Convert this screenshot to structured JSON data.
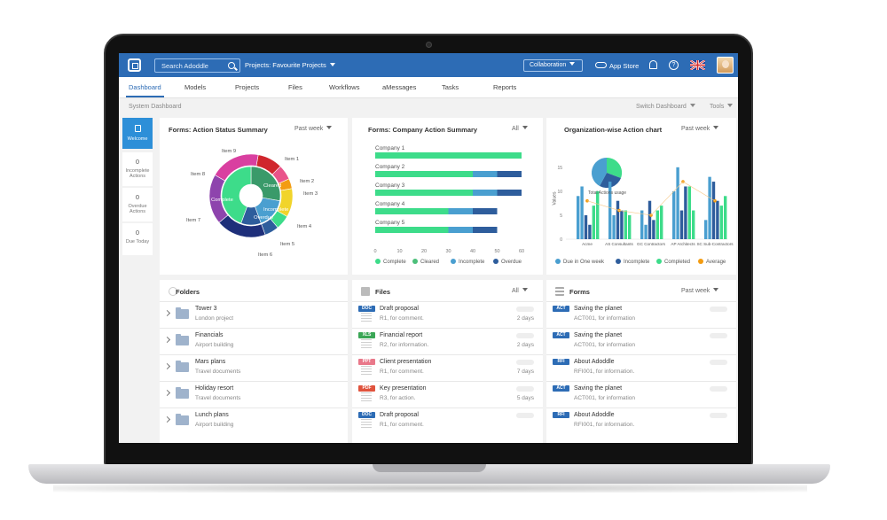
{
  "header": {
    "search_placeholder": "Search Adoddle",
    "projects_label": "Projects: Favourite Projects",
    "collaboration_label": "Collaboration",
    "app_store_label": "App Store",
    "help_glyph": "?"
  },
  "nav": {
    "tabs": [
      "Dashboard",
      "Models",
      "Projects",
      "Files",
      "Workflows",
      "aMessages",
      "Tasks",
      "Reports"
    ],
    "active": "Dashboard"
  },
  "dashbar": {
    "title": "System Dashboard",
    "switch_label": "Switch Dashboard",
    "tools_label": "Tools"
  },
  "side": {
    "welcome_label": "Welcome",
    "incomplete": {
      "count": "0",
      "label": "Incomplete Actions"
    },
    "overdue": {
      "count": "0",
      "label": "Overdue Actions"
    },
    "due_today": {
      "count": "0",
      "label": "Due Today"
    }
  },
  "colors": {
    "brand_blue": "#2d6cb5",
    "complete": "#3ddc8a",
    "cleared": "#4cbf7a",
    "incomplete": "#4a9fd0",
    "overdue": "#2e5d9c",
    "average": "#f39c12"
  },
  "chart_data": [
    {
      "type": "pie",
      "title": "Forms: Action Status Summary",
      "filter": "Past week",
      "inner_labels": [
        "Cleared",
        "Complete",
        "Incomplete",
        "Overdue"
      ],
      "items": [
        "Item 1",
        "Item 2",
        "Item 3",
        "Item 4",
        "Item 5",
        "Item 6",
        "Item 7",
        "Item 8",
        "Item 9"
      ]
    },
    {
      "type": "bar",
      "title": "Forms: Company Action Summary",
      "filter": "All",
      "categories": [
        "Company 1",
        "Company 2",
        "Company 3",
        "Company 4",
        "Company 5"
      ],
      "series": [
        {
          "name": "Complete",
          "values": [
            60,
            40,
            40,
            30,
            30
          ]
        },
        {
          "name": "Cleared",
          "values": [
            0,
            0,
            0,
            0,
            0
          ]
        },
        {
          "name": "Incomplete",
          "values": [
            0,
            10,
            10,
            10,
            10
          ]
        },
        {
          "name": "Overdue",
          "values": [
            0,
            10,
            10,
            10,
            10
          ]
        }
      ],
      "xticks": [
        "0",
        "10",
        "20",
        "30",
        "40",
        "50",
        "60"
      ],
      "xlim": [
        0,
        60
      ]
    },
    {
      "type": "bar",
      "title": "Organization-wise Action chart",
      "filter": "Past week",
      "ylabel": "Values",
      "yticks": [
        "0",
        "5",
        "10",
        "15"
      ],
      "ylim": [
        0,
        17
      ],
      "categories": [
        "Acme",
        "AS Consultants",
        "GC Contractors",
        "AP Architects",
        "SC Sub-Contractors"
      ],
      "series": [
        {
          "name": "Due in One week",
          "values": [
            [
              9,
              11
            ],
            [
              12,
              5
            ],
            [
              6,
              3
            ],
            [
              10,
              15
            ],
            [
              4,
              13
            ]
          ]
        },
        {
          "name": "Incomplete",
          "values": [
            [
              5,
              3
            ],
            [
              8,
              6
            ],
            [
              8,
              4
            ],
            [
              6,
              11
            ],
            [
              12,
              8
            ]
          ]
        },
        {
          "name": "Completed",
          "values": [
            [
              7,
              10
            ],
            [
              6,
              5
            ],
            [
              6,
              7
            ],
            [
              11,
              6
            ],
            [
              7,
              9
            ]
          ]
        },
        {
          "name": "Average",
          "values": [
            8,
            6,
            5,
            12,
            8
          ]
        }
      ],
      "inset": {
        "caption": "Total Actions usage"
      }
    }
  ],
  "folders": {
    "title": "Folders",
    "items": [
      {
        "name": "Tower 3",
        "desc": "London project"
      },
      {
        "name": "Financials",
        "desc": "Airport building"
      },
      {
        "name": "Mars plans",
        "desc": "Travel documents"
      },
      {
        "name": "Holiday resort",
        "desc": "Travel documents"
      },
      {
        "name": "Lunch plans",
        "desc": "Airport building"
      }
    ]
  },
  "files": {
    "title": "Files",
    "filter": "All",
    "items": [
      {
        "type": "DOC",
        "color": "#2d6cb5",
        "name": "Draft proposal",
        "desc": "R1, for comment.",
        "age": "2 days"
      },
      {
        "type": "XLS",
        "color": "#3aa655",
        "name": "Financial report",
        "desc": "R2, for information.",
        "age": "2 days"
      },
      {
        "type": "PPT",
        "color": "#e9788a",
        "name": "Client presentation",
        "desc": "R1, for comment.",
        "age": "7 days"
      },
      {
        "type": "PDF",
        "color": "#e0533d",
        "name": "Key presentation",
        "desc": "R3, for action.",
        "age": "5 days"
      },
      {
        "type": "DOC",
        "color": "#2d6cb5",
        "name": "Draft proposal",
        "desc": "R1, for comment.",
        "age": ""
      }
    ]
  },
  "forms": {
    "title": "Forms",
    "filter": "Past week",
    "items": [
      {
        "type": "ACT",
        "name": "Saving the planet",
        "desc": "ACT001, for information"
      },
      {
        "type": "ACT",
        "name": "Saving the planet",
        "desc": "ACT001, for information"
      },
      {
        "type": "RFI",
        "name": "About Adoddle",
        "desc": "RFI001, for information."
      },
      {
        "type": "ACT",
        "name": "Saving the planet",
        "desc": "ACT001, for information"
      },
      {
        "type": "RFI",
        "name": "About Adoddle",
        "desc": "RFI001, for information."
      }
    ]
  }
}
